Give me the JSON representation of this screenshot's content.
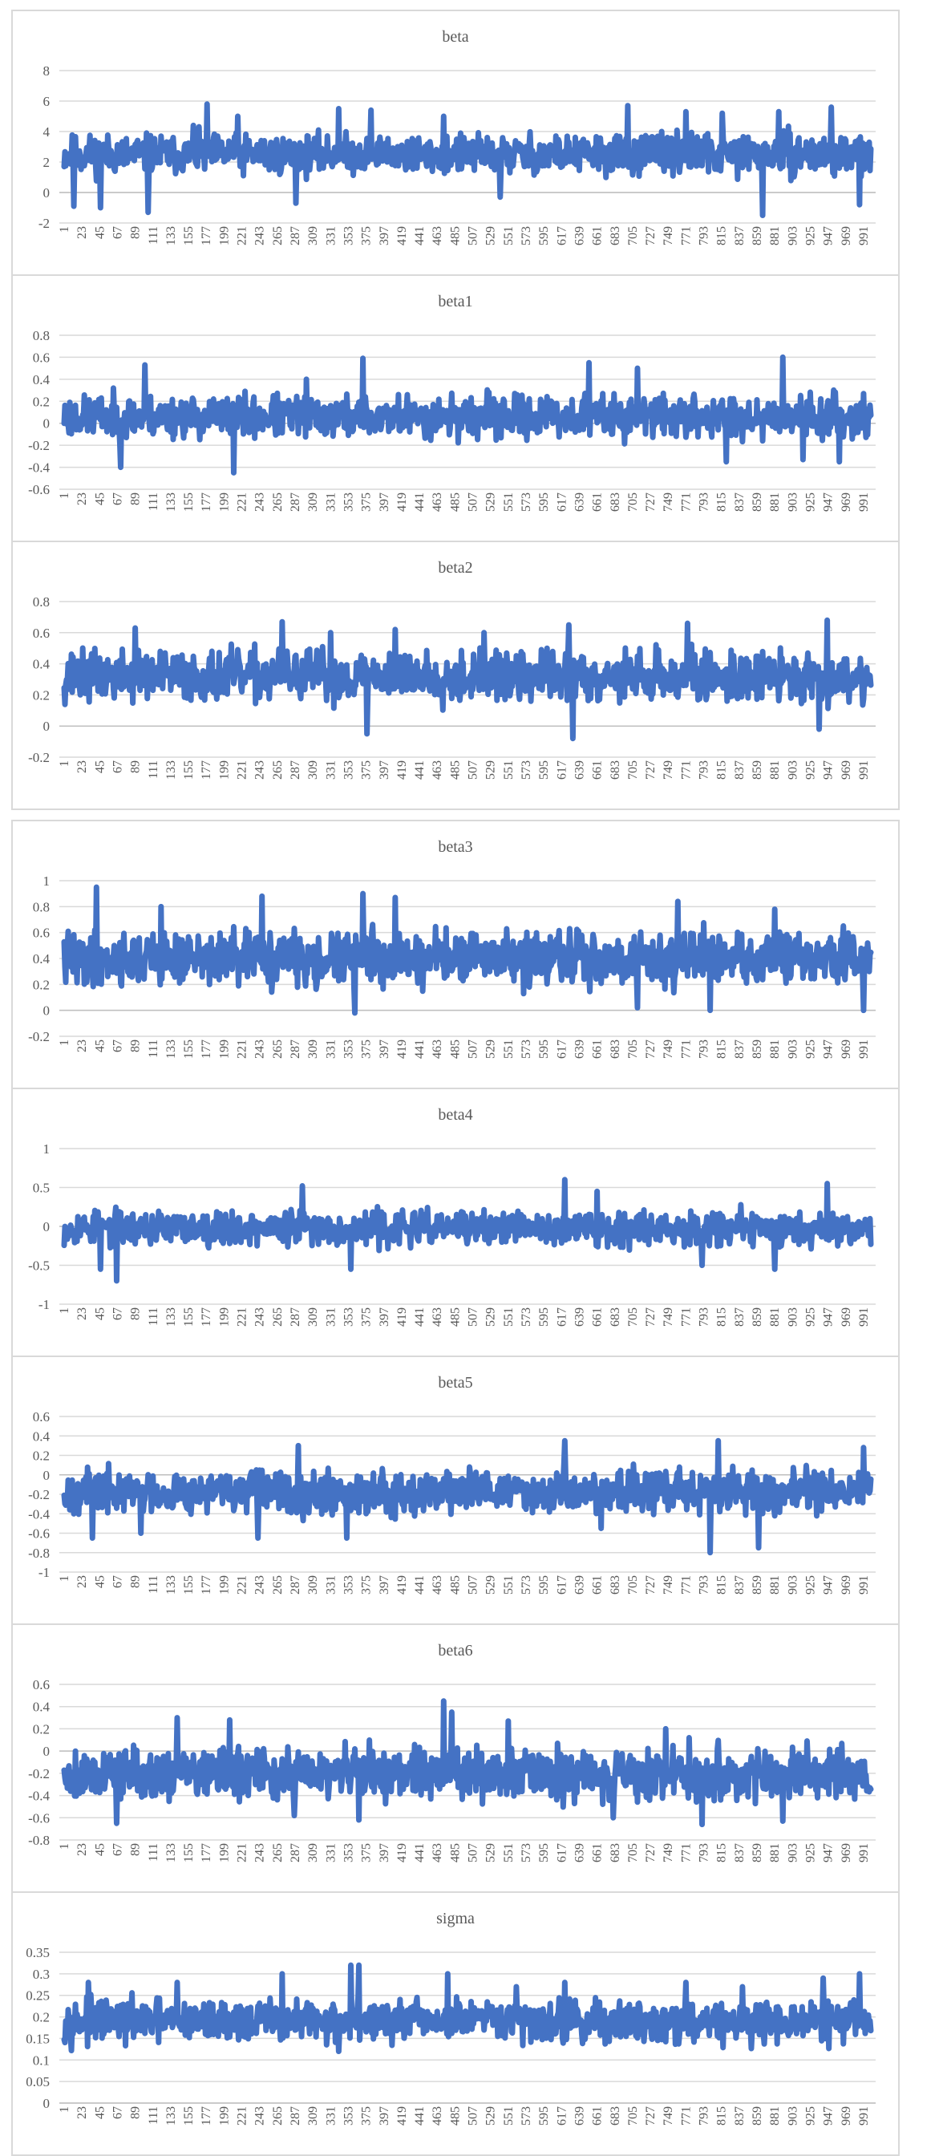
{
  "chart_data": [
    {
      "type": "line",
      "title": "beta",
      "color": "#4472c4",
      "yticks": [
        "8",
        "6",
        "4",
        "2",
        "0",
        "-2"
      ],
      "ylim": [
        -2,
        8
      ],
      "xticks": [
        "1",
        "23",
        "45",
        "67",
        "89",
        "111",
        "133",
        "155",
        "177",
        "199",
        "221",
        "243",
        "265",
        "287",
        "309",
        "331",
        "353",
        "375",
        "397",
        "419",
        "441",
        "463",
        "485",
        "507",
        "529",
        "551",
        "573",
        "595",
        "617",
        "639",
        "661",
        "683",
        "705",
        "727",
        "749",
        "771",
        "793",
        "815",
        "837",
        "859",
        "881",
        "903",
        "925",
        "947",
        "969",
        "991"
      ],
      "series": [
        {
          "n": 1000,
          "mean": 2.5,
          "spread": 1.9,
          "seed": 11,
          "spikes": [
            [
              12,
              -0.9
            ],
            [
              45,
              -1.0
            ],
            [
              104,
              -1.3
            ],
            [
              160,
              4.4
            ],
            [
              177,
              5.8
            ],
            [
              215,
              5.0
            ],
            [
              287,
              -0.7
            ],
            [
              340,
              5.5
            ],
            [
              380,
              5.4
            ],
            [
              470,
              5.0
            ],
            [
              540,
              -0.3
            ],
            [
              698,
              5.7
            ],
            [
              770,
              5.3
            ],
            [
              815,
              5.2
            ],
            [
              865,
              -1.5
            ],
            [
              885,
              5.3
            ],
            [
              950,
              5.6
            ],
            [
              985,
              -0.8
            ]
          ]
        }
      ]
    },
    {
      "type": "line",
      "title": "beta1",
      "color": "#4472c4",
      "yticks": [
        "0.8",
        "0.6",
        "0.4",
        "0.2",
        "0",
        "-0.2",
        "-0.4",
        "-0.6"
      ],
      "ylim": [
        -0.6,
        0.8
      ],
      "xticks": [
        "1",
        "23",
        "45",
        "67",
        "89",
        "111",
        "133",
        "155",
        "177",
        "199",
        "221",
        "243",
        "265",
        "287",
        "309",
        "331",
        "353",
        "375",
        "397",
        "419",
        "441",
        "463",
        "485",
        "507",
        "529",
        "551",
        "573",
        "595",
        "617",
        "639",
        "661",
        "683",
        "705",
        "727",
        "749",
        "771",
        "793",
        "815",
        "837",
        "859",
        "881",
        "903",
        "925",
        "947",
        "969",
        "991"
      ],
      "series": [
        {
          "n": 1000,
          "mean": 0.06,
          "spread": 0.28,
          "seed": 23,
          "spikes": [
            [
              70,
              -0.4
            ],
            [
              100,
              0.53
            ],
            [
              210,
              -0.45
            ],
            [
              300,
              0.4
            ],
            [
              370,
              0.59
            ],
            [
              650,
              0.55
            ],
            [
              710,
              0.5
            ],
            [
              820,
              -0.35
            ],
            [
              890,
              0.6
            ],
            [
              915,
              -0.33
            ],
            [
              960,
              -0.35
            ]
          ]
        }
      ]
    },
    {
      "type": "line",
      "title": "beta2",
      "color": "#4472c4",
      "yticks": [
        "0.8",
        "0.6",
        "0.4",
        "0.2",
        "0",
        "-0.2"
      ],
      "ylim": [
        -0.2,
        0.8
      ],
      "xticks": [
        "1",
        "23",
        "45",
        "67",
        "89",
        "111",
        "133",
        "155",
        "177",
        "199",
        "221",
        "243",
        "265",
        "287",
        "309",
        "331",
        "353",
        "375",
        "397",
        "419",
        "441",
        "463",
        "485",
        "507",
        "529",
        "551",
        "573",
        "595",
        "617",
        "639",
        "661",
        "683",
        "705",
        "727",
        "749",
        "771",
        "793",
        "815",
        "837",
        "859",
        "881",
        "903",
        "925",
        "947",
        "969",
        "991"
      ],
      "series": [
        {
          "n": 1000,
          "mean": 0.32,
          "spread": 0.24,
          "seed": 37,
          "spikes": [
            [
              88,
              0.63
            ],
            [
              270,
              0.67
            ],
            [
              330,
              0.6
            ],
            [
              375,
              -0.05
            ],
            [
              410,
              0.62
            ],
            [
              520,
              0.6
            ],
            [
              625,
              0.65
            ],
            [
              630,
              -0.08
            ],
            [
              772,
              0.66
            ],
            [
              935,
              -0.02
            ],
            [
              945,
              0.68
            ]
          ]
        }
      ]
    },
    {
      "type": "line",
      "title": "beta3",
      "color": "#4472c4",
      "yticks": [
        "1",
        "0.8",
        "0.6",
        "0.4",
        "0.2",
        "0",
        "-0.2"
      ],
      "ylim": [
        -0.2,
        1
      ],
      "xticks": [
        "1",
        "23",
        "45",
        "67",
        "89",
        "111",
        "133",
        "155",
        "177",
        "199",
        "221",
        "243",
        "265",
        "287",
        "309",
        "331",
        "353",
        "375",
        "397",
        "419",
        "441",
        "463",
        "485",
        "507",
        "529",
        "551",
        "573",
        "595",
        "617",
        "639",
        "661",
        "683",
        "705",
        "727",
        "749",
        "771",
        "793",
        "815",
        "837",
        "859",
        "881",
        "903",
        "925",
        "947",
        "969",
        "991"
      ],
      "series": [
        {
          "n": 1000,
          "mean": 0.4,
          "spread": 0.3,
          "seed": 41,
          "spikes": [
            [
              40,
              0.95
            ],
            [
              120,
              0.8
            ],
            [
              245,
              0.88
            ],
            [
              360,
              -0.02
            ],
            [
              370,
              0.9
            ],
            [
              410,
              0.87
            ],
            [
              710,
              0.02
            ],
            [
              760,
              0.84
            ],
            [
              800,
              0.0
            ],
            [
              880,
              0.78
            ],
            [
              990,
              0.0
            ]
          ]
        }
      ]
    },
    {
      "type": "line",
      "title": "beta4",
      "color": "#4472c4",
      "yticks": [
        "1",
        "0.5",
        "0",
        "-0.5",
        "-1"
      ],
      "ylim": [
        -1,
        1
      ],
      "xticks": [
        "1",
        "23",
        "45",
        "67",
        "89",
        "111",
        "133",
        "155",
        "177",
        "199",
        "221",
        "243",
        "265",
        "287",
        "309",
        "331",
        "353",
        "375",
        "397",
        "419",
        "441",
        "463",
        "485",
        "507",
        "529",
        "551",
        "573",
        "595",
        "617",
        "639",
        "661",
        "683",
        "705",
        "727",
        "749",
        "771",
        "793",
        "815",
        "837",
        "859",
        "881",
        "903",
        "925",
        "947",
        "969",
        "991"
      ],
      "series": [
        {
          "n": 1000,
          "mean": -0.02,
          "spread": 0.32,
          "seed": 53,
          "spikes": [
            [
              45,
              -0.55
            ],
            [
              65,
              -0.7
            ],
            [
              295,
              0.52
            ],
            [
              355,
              -0.55
            ],
            [
              620,
              0.6
            ],
            [
              660,
              0.45
            ],
            [
              790,
              -0.5
            ],
            [
              880,
              -0.55
            ],
            [
              945,
              0.55
            ]
          ]
        }
      ]
    },
    {
      "type": "line",
      "title": "beta5",
      "color": "#4472c4",
      "yticks": [
        "0.6",
        "0.4",
        "0.2",
        "0",
        "-0.2",
        "-0.4",
        "-0.6",
        "-0.8",
        "-1"
      ],
      "ylim": [
        -1,
        0.6
      ],
      "xticks": [
        "1",
        "23",
        "45",
        "67",
        "89",
        "111",
        "133",
        "155",
        "177",
        "199",
        "221",
        "243",
        "265",
        "287",
        "309",
        "331",
        "353",
        "375",
        "397",
        "419",
        "441",
        "463",
        "485",
        "507",
        "529",
        "551",
        "573",
        "595",
        "617",
        "639",
        "661",
        "683",
        "705",
        "727",
        "749",
        "771",
        "793",
        "815",
        "837",
        "859",
        "881",
        "903",
        "925",
        "947",
        "969",
        "991"
      ],
      "series": [
        {
          "n": 1000,
          "mean": -0.17,
          "spread": 0.32,
          "seed": 67,
          "spikes": [
            [
              35,
              -0.65
            ],
            [
              95,
              -0.6
            ],
            [
              240,
              -0.65
            ],
            [
              290,
              0.3
            ],
            [
              350,
              -0.65
            ],
            [
              620,
              0.35
            ],
            [
              665,
              -0.55
            ],
            [
              800,
              -0.8
            ],
            [
              810,
              0.35
            ],
            [
              860,
              -0.75
            ],
            [
              990,
              0.28
            ]
          ]
        }
      ]
    },
    {
      "type": "line",
      "title": "beta6",
      "color": "#4472c4",
      "yticks": [
        "0.6",
        "0.4",
        "0.2",
        "0",
        "-0.2",
        "-0.4",
        "-0.6",
        "-0.8"
      ],
      "ylim": [
        -0.8,
        0.6
      ],
      "xticks": [
        "1",
        "23",
        "45",
        "67",
        "89",
        "111",
        "133",
        "155",
        "177",
        "199",
        "221",
        "243",
        "265",
        "287",
        "309",
        "331",
        "353",
        "375",
        "397",
        "419",
        "441",
        "463",
        "485",
        "507",
        "529",
        "551",
        "573",
        "595",
        "617",
        "639",
        "661",
        "683",
        "705",
        "727",
        "749",
        "771",
        "793",
        "815",
        "837",
        "859",
        "881",
        "903",
        "925",
        "947",
        "969",
        "991"
      ],
      "series": [
        {
          "n": 1000,
          "mean": -0.2,
          "spread": 0.34,
          "seed": 79,
          "spikes": [
            [
              65,
              -0.65
            ],
            [
              140,
              0.3
            ],
            [
              205,
              0.28
            ],
            [
              285,
              -0.58
            ],
            [
              365,
              -0.62
            ],
            [
              470,
              0.45
            ],
            [
              480,
              0.35
            ],
            [
              550,
              0.27
            ],
            [
              680,
              -0.6
            ],
            [
              745,
              0.2
            ],
            [
              790,
              -0.66
            ],
            [
              890,
              -0.63
            ]
          ]
        }
      ]
    },
    {
      "type": "line",
      "title": "sigma",
      "color": "#4472c4",
      "yticks": [
        "0.35",
        "0.3",
        "0.25",
        "0.2",
        "0.15",
        "0.1",
        "0.05",
        "0"
      ],
      "ylim": [
        0,
        0.35
      ],
      "xticks": [
        "1",
        "23",
        "45",
        "67",
        "89",
        "111",
        "133",
        "155",
        "177",
        "199",
        "221",
        "243",
        "265",
        "287",
        "309",
        "331",
        "353",
        "375",
        "397",
        "419",
        "441",
        "463",
        "485",
        "507",
        "529",
        "551",
        "573",
        "595",
        "617",
        "639",
        "661",
        "683",
        "705",
        "727",
        "749",
        "771",
        "793",
        "815",
        "837",
        "859",
        "881",
        "903",
        "925",
        "947",
        "969",
        "991"
      ],
      "series": [
        {
          "n": 1000,
          "mean": 0.19,
          "spread": 0.07,
          "seed": 97,
          "spikes": [
            [
              30,
              0.28
            ],
            [
              140,
              0.28
            ],
            [
              270,
              0.3
            ],
            [
              340,
              0.12
            ],
            [
              355,
              0.32
            ],
            [
              365,
              0.32
            ],
            [
              475,
              0.3
            ],
            [
              560,
              0.27
            ],
            [
              620,
              0.28
            ],
            [
              770,
              0.28
            ],
            [
              840,
              0.27
            ],
            [
              940,
              0.29
            ],
            [
              985,
              0.3
            ]
          ]
        }
      ]
    }
  ]
}
